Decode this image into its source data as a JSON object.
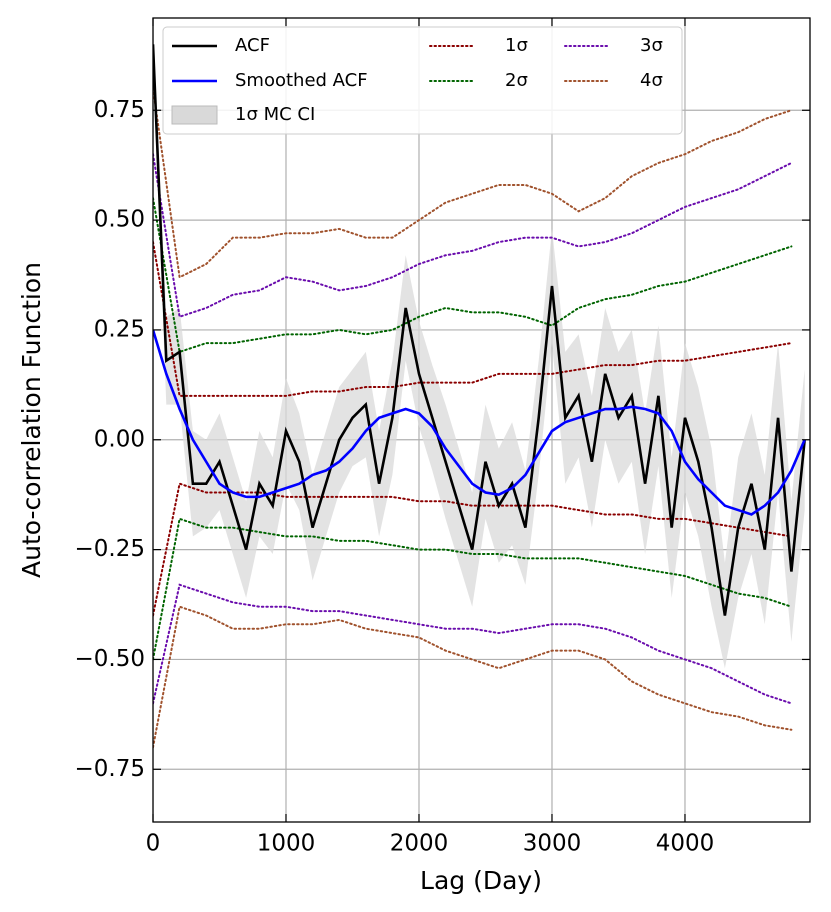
{
  "chart_data": {
    "type": "line",
    "x_label": "Lag (Day)",
    "y_label": "Auto-correlation Function",
    "x": [
      0,
      100,
      200,
      300,
      400,
      500,
      600,
      700,
      800,
      900,
      1000,
      1100,
      1200,
      1300,
      1400,
      1500,
      1600,
      1700,
      1800,
      1900,
      2000,
      2100,
      2200,
      2300,
      2400,
      2500,
      2600,
      2700,
      2800,
      2900,
      3000,
      3100,
      3200,
      3300,
      3400,
      3500,
      3600,
      3700,
      3800,
      3900,
      4000,
      4100,
      4200,
      4300,
      4400,
      4500,
      4600,
      4700,
      4800,
      4900
    ],
    "series": [
      {
        "name": "ACF",
        "color": "#000000",
        "values": [
          0.9,
          0.18,
          0.2,
          -0.1,
          -0.1,
          -0.05,
          -0.15,
          -0.25,
          -0.1,
          -0.15,
          0.02,
          -0.05,
          -0.2,
          -0.1,
          0.0,
          0.05,
          0.08,
          -0.1,
          0.05,
          0.3,
          0.15,
          0.05,
          -0.05,
          -0.15,
          -0.25,
          -0.05,
          -0.15,
          -0.1,
          -0.2,
          0.05,
          0.35,
          0.05,
          0.1,
          -0.05,
          0.15,
          0.05,
          0.1,
          -0.1,
          0.1,
          -0.2,
          0.05,
          -0.05,
          -0.2,
          -0.4,
          -0.2,
          -0.1,
          -0.25,
          0.05,
          -0.3,
          0.0
        ]
      },
      {
        "name": "Smoothed ACF",
        "color": "#0000ff",
        "values": [
          0.25,
          0.15,
          0.07,
          0.0,
          -0.05,
          -0.1,
          -0.12,
          -0.13,
          -0.13,
          -0.12,
          -0.11,
          -0.1,
          -0.08,
          -0.07,
          -0.05,
          -0.02,
          0.02,
          0.05,
          0.06,
          0.07,
          0.06,
          0.03,
          -0.02,
          -0.06,
          -0.1,
          -0.12,
          -0.125,
          -0.11,
          -0.08,
          -0.03,
          0.02,
          0.04,
          0.05,
          0.06,
          0.07,
          0.07,
          0.075,
          0.07,
          0.06,
          0.02,
          -0.05,
          -0.09,
          -0.12,
          -0.15,
          -0.16,
          -0.17,
          -0.15,
          -0.12,
          -0.07,
          0.0
        ]
      }
    ],
    "band": {
      "name": "1σ MC CI",
      "color": "#d9d9d9",
      "lower": [
        0.85,
        0.08,
        0.08,
        -0.22,
        -0.2,
        -0.16,
        -0.26,
        -0.36,
        -0.22,
        -0.26,
        -0.1,
        -0.16,
        -0.32,
        -0.22,
        -0.12,
        -0.06,
        -0.04,
        -0.22,
        -0.08,
        0.18,
        0.03,
        -0.07,
        -0.18,
        -0.28,
        -0.38,
        -0.18,
        -0.28,
        -0.24,
        -0.33,
        -0.08,
        0.22,
        -0.1,
        -0.04,
        -0.2,
        0.0,
        -0.1,
        -0.05,
        -0.26,
        -0.06,
        -0.36,
        -0.12,
        -0.22,
        -0.38,
        -0.52,
        -0.36,
        -0.26,
        -0.42,
        -0.12,
        -0.46,
        -0.16
      ],
      "upper": [
        0.95,
        0.28,
        0.3,
        0.02,
        0.0,
        0.06,
        -0.04,
        -0.14,
        0.02,
        -0.04,
        0.14,
        0.06,
        -0.08,
        0.02,
        0.12,
        0.16,
        0.2,
        0.02,
        0.18,
        0.42,
        0.27,
        0.17,
        0.08,
        -0.02,
        -0.12,
        0.08,
        -0.02,
        0.04,
        -0.07,
        0.18,
        0.48,
        0.2,
        0.24,
        0.1,
        0.3,
        0.2,
        0.25,
        0.06,
        0.26,
        -0.04,
        0.22,
        0.12,
        -0.02,
        -0.28,
        -0.04,
        0.06,
        -0.08,
        0.22,
        -0.14,
        0.16
      ]
    },
    "envelopes": {
      "x": [
        0,
        200,
        400,
        600,
        800,
        1000,
        1200,
        1400,
        1600,
        1800,
        2000,
        2200,
        2400,
        2600,
        2800,
        3000,
        3200,
        3400,
        3600,
        3800,
        4000,
        4200,
        4400,
        4600,
        4800
      ],
      "series": [
        {
          "name": "1σ",
          "color": "#8b0000",
          "upper": [
            0.45,
            0.1,
            0.1,
            0.1,
            0.1,
            0.1,
            0.11,
            0.11,
            0.12,
            0.12,
            0.13,
            0.13,
            0.13,
            0.15,
            0.15,
            0.15,
            0.16,
            0.17,
            0.17,
            0.18,
            0.18,
            0.19,
            0.2,
            0.21,
            0.22
          ],
          "lower": [
            -0.4,
            -0.1,
            -0.12,
            -0.12,
            -0.12,
            -0.13,
            -0.13,
            -0.13,
            -0.13,
            -0.13,
            -0.14,
            -0.14,
            -0.15,
            -0.15,
            -0.15,
            -0.15,
            -0.16,
            -0.17,
            -0.17,
            -0.18,
            -0.18,
            -0.19,
            -0.2,
            -0.21,
            -0.22
          ]
        },
        {
          "name": "2σ",
          "color": "#006400",
          "upper": [
            0.55,
            0.2,
            0.22,
            0.22,
            0.23,
            0.24,
            0.24,
            0.25,
            0.24,
            0.25,
            0.28,
            0.3,
            0.29,
            0.29,
            0.28,
            0.26,
            0.3,
            0.32,
            0.33,
            0.35,
            0.36,
            0.38,
            0.4,
            0.42,
            0.44
          ],
          "lower": [
            -0.5,
            -0.18,
            -0.2,
            -0.2,
            -0.21,
            -0.22,
            -0.22,
            -0.23,
            -0.23,
            -0.24,
            -0.25,
            -0.25,
            -0.26,
            -0.26,
            -0.27,
            -0.27,
            -0.27,
            -0.28,
            -0.29,
            -0.3,
            -0.31,
            -0.33,
            -0.35,
            -0.36,
            -0.38
          ]
        },
        {
          "name": "3σ",
          "color": "#6a0dad",
          "upper": [
            0.65,
            0.28,
            0.3,
            0.33,
            0.34,
            0.37,
            0.36,
            0.34,
            0.35,
            0.37,
            0.4,
            0.42,
            0.43,
            0.45,
            0.46,
            0.46,
            0.44,
            0.45,
            0.47,
            0.5,
            0.53,
            0.55,
            0.57,
            0.6,
            0.63
          ],
          "lower": [
            -0.6,
            -0.33,
            -0.35,
            -0.37,
            -0.38,
            -0.38,
            -0.39,
            -0.39,
            -0.4,
            -0.41,
            -0.42,
            -0.43,
            -0.43,
            -0.44,
            -0.43,
            -0.42,
            -0.42,
            -0.43,
            -0.45,
            -0.48,
            -0.5,
            -0.52,
            -0.55,
            -0.58,
            -0.6
          ]
        },
        {
          "name": "4σ",
          "color": "#a0522d",
          "upper": [
            0.8,
            0.37,
            0.4,
            0.46,
            0.46,
            0.47,
            0.47,
            0.48,
            0.46,
            0.46,
            0.5,
            0.54,
            0.56,
            0.58,
            0.58,
            0.56,
            0.52,
            0.55,
            0.6,
            0.63,
            0.65,
            0.68,
            0.7,
            0.73,
            0.75
          ],
          "lower": [
            -0.7,
            -0.38,
            -0.4,
            -0.43,
            -0.43,
            -0.42,
            -0.42,
            -0.41,
            -0.43,
            -0.44,
            -0.45,
            -0.48,
            -0.5,
            -0.52,
            -0.5,
            -0.48,
            -0.48,
            -0.5,
            -0.55,
            -0.58,
            -0.6,
            -0.62,
            -0.63,
            -0.65,
            -0.66
          ]
        }
      ]
    },
    "xlim": [
      0,
      4940
    ],
    "ylim": [
      -0.87,
      0.96
    ],
    "xticks": [
      0,
      1000,
      2000,
      3000,
      4000
    ],
    "yticks": [
      {
        "value": -0.75,
        "label": "−0.75"
      },
      {
        "value": -0.5,
        "label": "−0.50"
      },
      {
        "value": -0.25,
        "label": "−0.25"
      },
      {
        "value": 0,
        "label": "0.00"
      },
      0.25,
      {
        "value": 0.5,
        "label": "0.50"
      },
      0.75
    ],
    "grid": true,
    "legend": "upper left"
  }
}
